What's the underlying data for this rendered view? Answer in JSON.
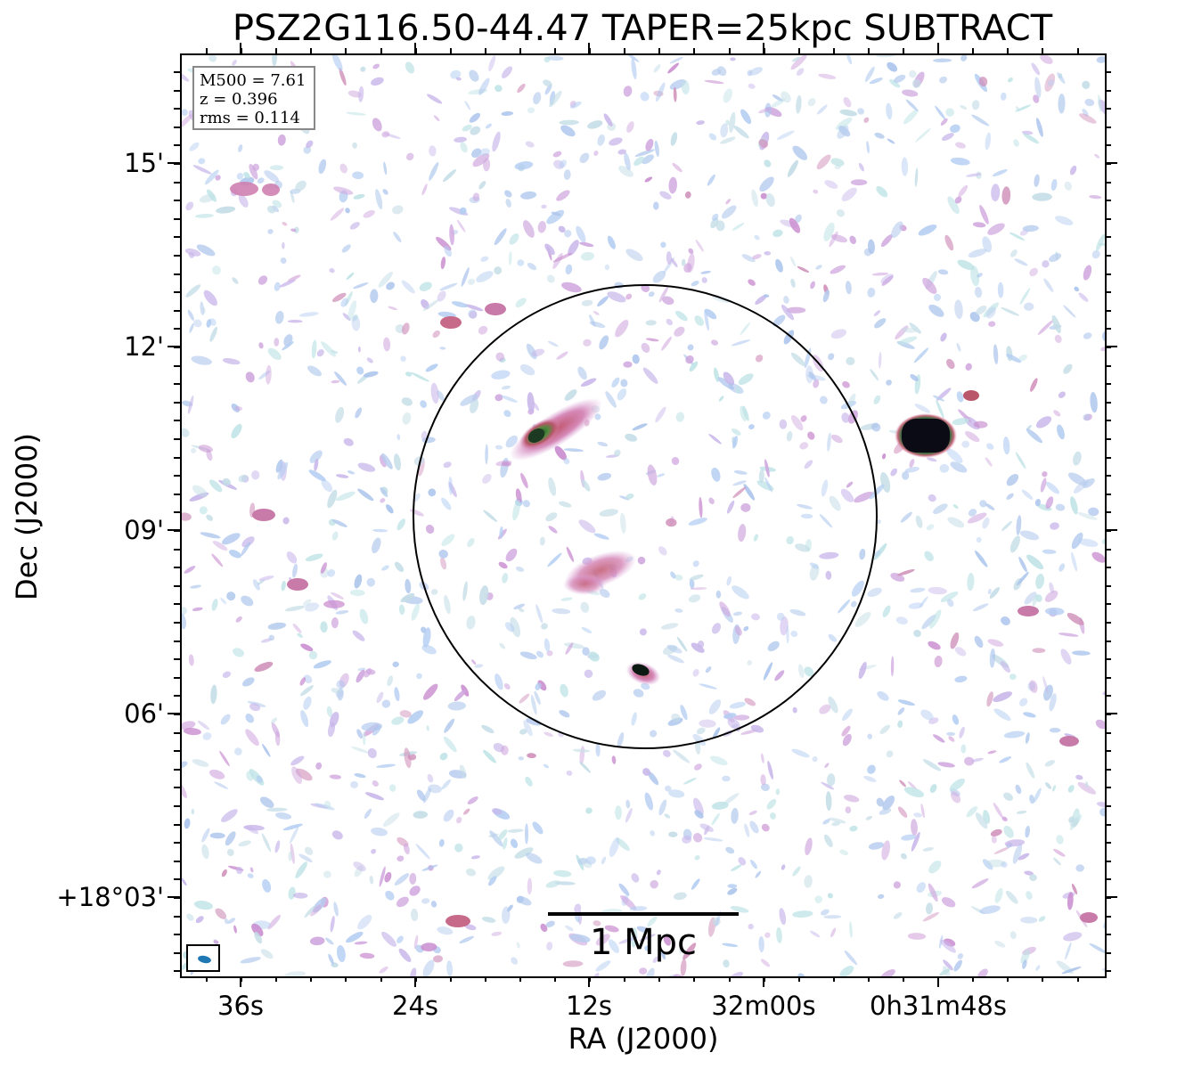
{
  "title": "PSZ2G116.50-44.47 TAPER=25kpc SUBTRACT",
  "info": {
    "m500": "M500 = 7.61",
    "z": "z = 0.396",
    "rms": "rms = 0.114"
  },
  "axes": {
    "xlabel": "RA (J2000)",
    "ylabel": "Dec (J2000)",
    "yticks": [
      "15'",
      "12'",
      "09'",
      "06'",
      "+18°03'"
    ],
    "xticks": [
      "36s",
      "24s",
      "12s",
      "32m00s",
      "0h31m48s"
    ]
  },
  "scalebar": {
    "label": "1 Mpc"
  },
  "image": {
    "colormap": "cubehelix-like (light blue → magenta → green → black)",
    "background": "#ffffff",
    "aperture_circle": "black circle marking cluster region",
    "sources": [
      "elongated source NW of center",
      "diffuse emission near center",
      "compact source south of center",
      "bright compact source east of circle"
    ],
    "beam_color": "#1f77b4"
  }
}
